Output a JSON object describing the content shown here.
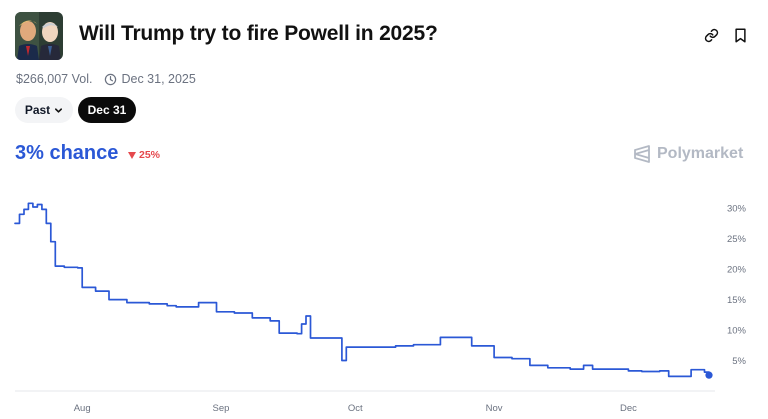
{
  "market": {
    "title": "Will Trump try to fire Powell in 2025?",
    "volume": "$266,007 Vol.",
    "end_date": "Dec 31, 2025"
  },
  "filters": {
    "past_label": "Past",
    "selected_date_label": "Dec 31"
  },
  "summary": {
    "chance_label": "3% chance",
    "change_label": "25%"
  },
  "brand": {
    "name": "Polymarket"
  },
  "icons": {
    "link": "link-icon",
    "bookmark": "bookmark-icon",
    "clock": "clock-icon",
    "chevron": "chevron-down-icon",
    "down_triangle": "triangle-down-icon",
    "logo": "polymarket-logo-icon"
  },
  "colors": {
    "line": "#2b58d6",
    "down": "#e5484d",
    "title_text": "#111111",
    "muted_text": "#6b7280"
  },
  "chart_data": {
    "type": "line",
    "title": "",
    "xlabel": "",
    "ylabel": "",
    "ylim": [
      0,
      32
    ],
    "xlim": [
      "2025-07-17",
      "2025-12-19"
    ],
    "y_ticks": [
      5,
      10,
      15,
      20,
      25,
      30
    ],
    "y_tick_labels": [
      "5%",
      "10%",
      "15%",
      "20%",
      "25%",
      "30%"
    ],
    "x_ticks": [
      "2025-08-01",
      "2025-09-01",
      "2025-10-01",
      "2025-11-01",
      "2025-12-01"
    ],
    "x_tick_labels": [
      "Aug",
      "Sep",
      "Oct",
      "Nov",
      "Dec"
    ],
    "grid": false,
    "series": [
      {
        "points": [
          [
            "2025-07-17",
            27.5
          ],
          [
            "2025-07-18",
            29.0
          ],
          [
            "2025-07-19",
            29.8
          ],
          [
            "2025-07-20",
            30.8
          ],
          [
            "2025-07-21",
            30.2
          ],
          [
            "2025-07-22",
            30.6
          ],
          [
            "2025-07-23",
            29.8
          ],
          [
            "2025-07-24",
            27.5
          ],
          [
            "2025-07-25",
            24.5
          ],
          [
            "2025-07-26",
            20.5
          ],
          [
            "2025-07-28",
            20.3
          ],
          [
            "2025-07-31",
            20.2
          ],
          [
            "2025-08-01",
            17.0
          ],
          [
            "2025-08-04",
            16.4
          ],
          [
            "2025-08-07",
            15.0
          ],
          [
            "2025-08-11",
            14.5
          ],
          [
            "2025-08-16",
            14.3
          ],
          [
            "2025-08-20",
            14.0
          ],
          [
            "2025-08-22",
            13.8
          ],
          [
            "2025-08-27",
            14.5
          ],
          [
            "2025-08-31",
            13.0
          ],
          [
            "2025-09-04",
            12.8
          ],
          [
            "2025-09-08",
            12.0
          ],
          [
            "2025-09-12",
            11.5
          ],
          [
            "2025-09-14",
            9.5
          ],
          [
            "2025-09-18",
            9.4
          ],
          [
            "2025-09-19",
            11.0
          ],
          [
            "2025-09-20",
            12.3
          ],
          [
            "2025-09-21",
            8.7
          ],
          [
            "2025-09-27",
            8.7
          ],
          [
            "2025-09-28",
            5.0
          ],
          [
            "2025-09-29",
            7.2
          ],
          [
            "2025-10-10",
            7.4
          ],
          [
            "2025-10-14",
            7.6
          ],
          [
            "2025-10-20",
            8.8
          ],
          [
            "2025-10-25",
            8.8
          ],
          [
            "2025-10-27",
            7.4
          ],
          [
            "2025-11-01",
            5.5
          ],
          [
            "2025-11-05",
            5.3
          ],
          [
            "2025-11-09",
            4.2
          ],
          [
            "2025-11-13",
            3.8
          ],
          [
            "2025-11-18",
            3.6
          ],
          [
            "2025-11-21",
            4.2
          ],
          [
            "2025-11-23",
            3.6
          ],
          [
            "2025-12-01",
            3.3
          ],
          [
            "2025-12-04",
            3.2
          ],
          [
            "2025-12-08",
            3.3
          ],
          [
            "2025-12-10",
            2.4
          ],
          [
            "2025-12-15",
            3.5
          ],
          [
            "2025-12-18",
            3.1
          ],
          [
            "2025-12-19",
            2.6
          ]
        ]
      }
    ]
  }
}
